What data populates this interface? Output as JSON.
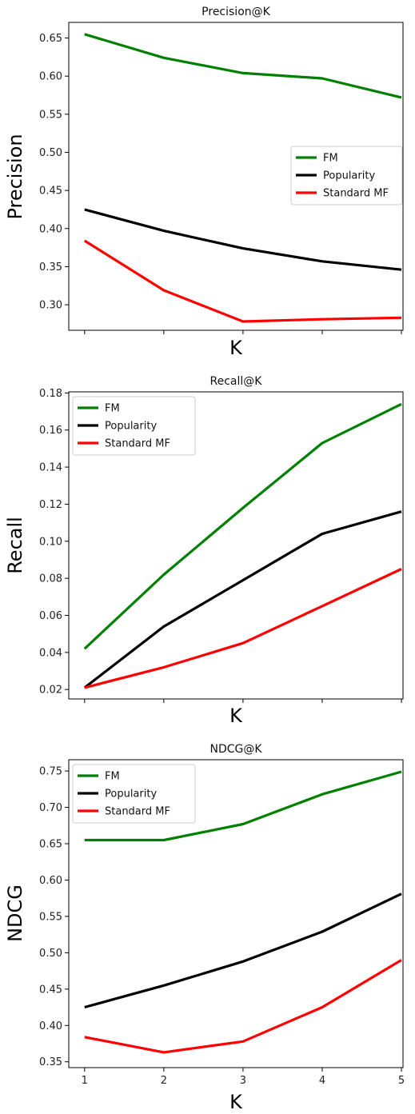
{
  "chart_data": [
    {
      "type": "line",
      "title": "Precision@K",
      "xlabel": "K",
      "ylabel": "Precision",
      "x": [
        1,
        2,
        3,
        4,
        5
      ],
      "xlim": [
        0.8,
        5.02
      ],
      "ylim": [
        0.2665,
        0.6705
      ],
      "yticks": [
        "0.30",
        "0.35",
        "0.40",
        "0.45",
        "0.50",
        "0.55",
        "0.60",
        "0.65"
      ],
      "show_xtick_labels": false,
      "legend_position": "center-right",
      "series": [
        {
          "name": "FM",
          "color": "#008000",
          "values": [
            0.655,
            0.624,
            0.604,
            0.597,
            0.572
          ]
        },
        {
          "name": "Popularity",
          "color": "#000000",
          "values": [
            0.425,
            0.397,
            0.374,
            0.357,
            0.346
          ]
        },
        {
          "name": "Standard MF",
          "color": "#ff0000",
          "values": [
            0.384,
            0.319,
            0.278,
            0.281,
            0.283
          ]
        }
      ]
    },
    {
      "type": "line",
      "title": "Recall@K",
      "xlabel": "K",
      "ylabel": "Recall",
      "x": [
        1,
        2,
        3,
        4,
        5
      ],
      "xlim": [
        0.8,
        5.02
      ],
      "ylim": [
        0.0149,
        0.1806
      ],
      "yticks": [
        "0.02",
        "0.04",
        "0.06",
        "0.08",
        "0.10",
        "0.12",
        "0.14",
        "0.16",
        "0.18"
      ],
      "show_xtick_labels": false,
      "legend_position": "upper-left",
      "series": [
        {
          "name": "FM",
          "color": "#008000",
          "values": [
            0.042,
            0.082,
            0.118,
            0.153,
            0.174
          ]
        },
        {
          "name": "Popularity",
          "color": "#000000",
          "values": [
            0.021,
            0.054,
            0.079,
            0.104,
            0.116
          ]
        },
        {
          "name": "Standard MF",
          "color": "#ff0000",
          "values": [
            0.021,
            0.032,
            0.045,
            0.065,
            0.085
          ]
        }
      ]
    },
    {
      "type": "line",
      "title": "NDCG@K",
      "xlabel": "K",
      "ylabel": "NDCG",
      "x": [
        1,
        2,
        3,
        4,
        5
      ],
      "xlim": [
        0.8,
        5.02
      ],
      "ylim": [
        0.342,
        0.7655
      ],
      "yticks": [
        "0.35",
        "0.40",
        "0.45",
        "0.50",
        "0.55",
        "0.60",
        "0.65",
        "0.70",
        "0.75"
      ],
      "xticks": [
        "1",
        "2",
        "3",
        "4",
        "5"
      ],
      "show_xtick_labels": true,
      "legend_position": "upper-left",
      "series": [
        {
          "name": "FM",
          "color": "#008000",
          "values": [
            0.655,
            0.655,
            0.677,
            0.718,
            0.749
          ]
        },
        {
          "name": "Popularity",
          "color": "#000000",
          "values": [
            0.425,
            0.455,
            0.488,
            0.529,
            0.581
          ]
        },
        {
          "name": "Standard MF",
          "color": "#ff0000",
          "values": [
            0.384,
            0.363,
            0.378,
            0.425,
            0.49
          ]
        }
      ]
    }
  ]
}
